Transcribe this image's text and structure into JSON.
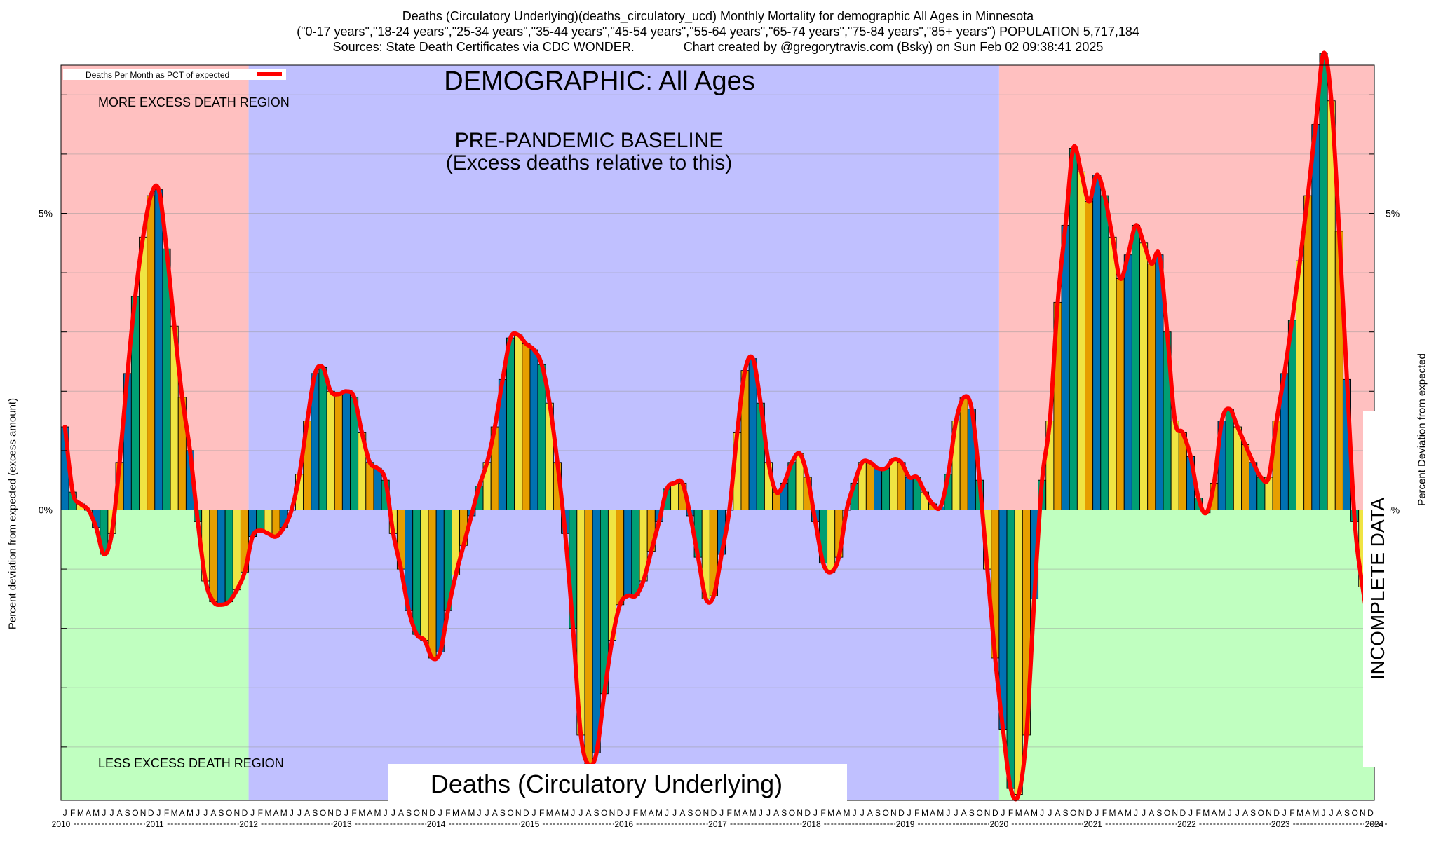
{
  "header": {
    "line1": "Deaths (Circulatory Underlying)(deaths_circulatory_ucd) Monthly Mortality for demographic All Ages in Minnesota",
    "line2": "(\"0-17 years\",\"18-24 years\",\"25-34 years\",\"35-44 years\",\"45-54 years\",\"55-64 years\",\"65-74 years\",\"75-84 years\",\"85+ years\") POPULATION 5,717,184",
    "line3": "Sources: State Death Certificates via CDC WONDER.              Chart created by @gregorytravis.com (Bsky) on Sun Feb 02 09:38:41 2025"
  },
  "axes": {
    "ylabel_left": "Percent deviation from expected (excess amount)",
    "ylabel_right": "Percent Deviation from expected",
    "ytick_labels": [
      "5%",
      "0%"
    ],
    "month_letters": [
      "J",
      "F",
      "M",
      "A",
      "M",
      "J",
      "J",
      "A",
      "S",
      "O",
      "N",
      "D"
    ]
  },
  "annotations": {
    "demographic": "DEMOGRAPHIC: All Ages",
    "baseline_line1": "PRE-PANDEMIC BASELINE",
    "baseline_line2": "(Excess deaths relative to this)",
    "more_region": "MORE EXCESS DEATH REGION",
    "less_region": "LESS EXCESS DEATH REGION",
    "metric_box": "Deaths (Circulatory Underlying)",
    "incomplete": "INCOMPLETE DATA"
  },
  "legend": {
    "label": "Deaths Per Month as PCT of expected",
    "line_color": "#ff0000"
  },
  "colors": {
    "excess_region": "#ffc0c0",
    "deficit_region": "#c0ffc0",
    "baseline_region": "#c0c0ff",
    "incomplete_hatch": "#a03050",
    "line": "#ff0000",
    "bar_colors": [
      "#0072b2",
      "#009e73",
      "#f0e442",
      "#e69f00"
    ]
  },
  "chart_data": {
    "type": "bar",
    "start": "2010-01",
    "years": [
      "2010",
      "2011",
      "2012",
      "2013",
      "2014",
      "2015",
      "2016",
      "2017",
      "2018",
      "2019",
      "2020",
      "2021",
      "2022",
      "2023",
      "2024"
    ],
    "baseline_years": [
      "2012",
      "2013",
      "2014",
      "2015",
      "2016",
      "2017",
      "2018",
      "2019"
    ],
    "incomplete_from": "2024-07",
    "ylim": [
      -4.9,
      7.5
    ],
    "ylabel": "Percent deviation from expected (excess amount)",
    "series_name": "Deaths Per Month as PCT of expected",
    "values": [
      1.4,
      0.3,
      0.1,
      0.0,
      -0.3,
      -0.75,
      -0.4,
      0.8,
      2.3,
      3.6,
      4.6,
      5.3,
      5.4,
      4.4,
      3.1,
      1.9,
      1.0,
      -0.2,
      -1.2,
      -1.55,
      -1.6,
      -1.55,
      -1.35,
      -1.05,
      -0.45,
      -0.35,
      -0.4,
      -0.45,
      -0.3,
      0.0,
      0.6,
      1.5,
      2.3,
      2.4,
      2.0,
      1.95,
      2.0,
      1.9,
      1.3,
      0.8,
      0.7,
      0.5,
      -0.4,
      -1.0,
      -1.7,
      -2.1,
      -2.2,
      -2.5,
      -2.4,
      -1.7,
      -1.1,
      -0.6,
      -0.1,
      0.4,
      0.8,
      1.4,
      2.2,
      2.9,
      2.95,
      2.8,
      2.7,
      2.45,
      1.8,
      0.8,
      -0.4,
      -2.0,
      -3.8,
      -4.3,
      -4.1,
      -3.1,
      -2.2,
      -1.6,
      -1.45,
      -1.45,
      -1.2,
      -0.7,
      -0.2,
      0.35,
      0.45,
      0.45,
      -0.1,
      -0.8,
      -1.5,
      -1.45,
      -0.75,
      0.0,
      1.3,
      2.35,
      2.55,
      1.8,
      0.8,
      0.3,
      0.45,
      0.8,
      0.95,
      0.55,
      -0.2,
      -0.9,
      -1.05,
      -0.8,
      0.0,
      0.45,
      0.8,
      0.8,
      0.7,
      0.7,
      0.85,
      0.8,
      0.55,
      0.55,
      0.3,
      0.1,
      0.05,
      0.6,
      1.5,
      1.9,
      1.7,
      0.5,
      -1.0,
      -2.5,
      -3.7,
      -4.7,
      -4.8,
      -3.8,
      -1.5,
      0.5,
      1.5,
      3.5,
      4.8,
      6.1,
      5.7,
      5.2,
      5.65,
      5.3,
      4.6,
      3.9,
      4.3,
      4.8,
      4.5,
      4.15,
      4.3,
      3.0,
      1.5,
      1.3,
      0.9,
      0.2,
      -0.05,
      0.45,
      1.5,
      1.7,
      1.4,
      1.1,
      0.8,
      0.55,
      0.55,
      1.5,
      2.3,
      3.2,
      4.2,
      5.3,
      6.5,
      7.7,
      6.9,
      4.7,
      2.2,
      -0.2,
      -1.3,
      -2.1
    ]
  }
}
